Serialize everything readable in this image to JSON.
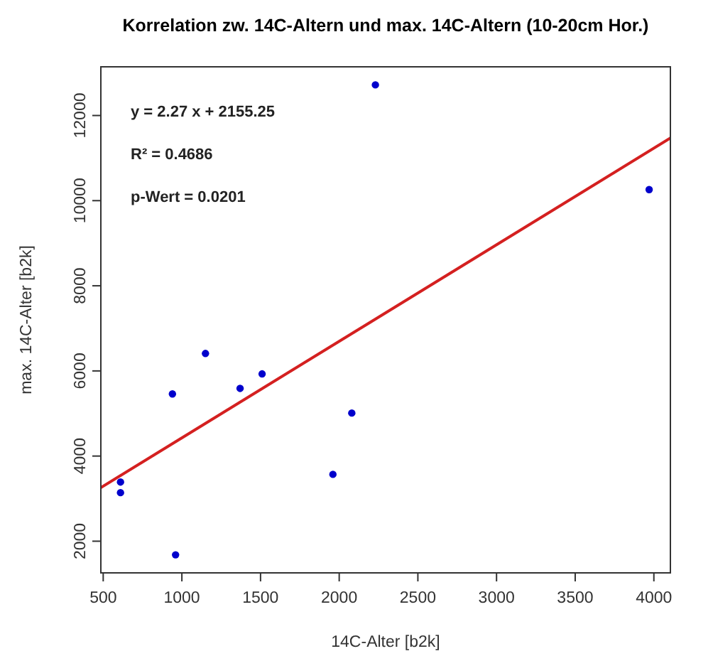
{
  "chart_data": {
    "type": "scatter",
    "title": "Korrelation zw. 14C-Altern und max. 14C-Altern (10-20cm Hor.)",
    "xlabel": "14C-Alter [b2k]",
    "ylabel": "max. 14C-Alter [b2k]",
    "annotations": [
      "y = 2.27 x +  2155.25",
      "R² = 0.4686",
      "p-Wert = 0.0201"
    ],
    "xlim": [
      485,
      4105
    ],
    "xticks": [
      500,
      1000,
      1500,
      2000,
      2500,
      3000,
      3500,
      4000
    ],
    "ylim": [
      1256,
      13144
    ],
    "yticks": [
      2000,
      4000,
      6000,
      8000,
      10000,
      12000
    ],
    "grid": false,
    "marker": "circle",
    "series": [
      {
        "color": "#0000cc",
        "x": [
          610,
          610,
          940,
          960,
          1150,
          1370,
          1510,
          1960,
          2080,
          2230,
          3970
        ],
        "values": [
          3390,
          3140,
          5460,
          1680,
          6410,
          5590,
          5930,
          3570,
          5010,
          12720,
          10260
        ]
      },
      {
        "type": "line",
        "color": "#d42020",
        "line_style": "solid",
        "marker": "none",
        "x": [
          485,
          4105
        ],
        "values": [
          3260,
          11470
        ]
      }
    ]
  }
}
